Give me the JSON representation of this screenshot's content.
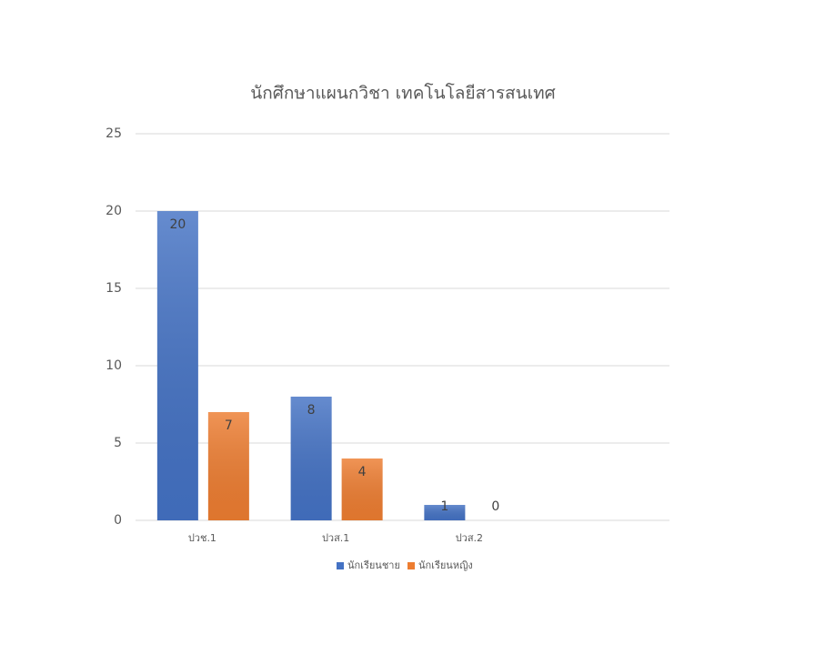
{
  "chart_data": {
    "type": "bar",
    "title": "นักศึกษาแผนกวิชา เทคโนโลยีสารสนเทศ",
    "categories": [
      "ปวช.1",
      "ปวส.1",
      "ปวส.2",
      null
    ],
    "series": [
      {
        "name": "นักเรียนชาย",
        "color": "#4472c4",
        "values": [
          20,
          8,
          1,
          null
        ]
      },
      {
        "name": "นักเรียนหญิง",
        "color": "#ed7d31",
        "values": [
          7,
          4,
          0,
          null
        ]
      }
    ],
    "ylim": [
      0,
      25
    ],
    "yticks": [
      0,
      5,
      10,
      15,
      20,
      25
    ],
    "grid": true,
    "legend": "bottom"
  }
}
